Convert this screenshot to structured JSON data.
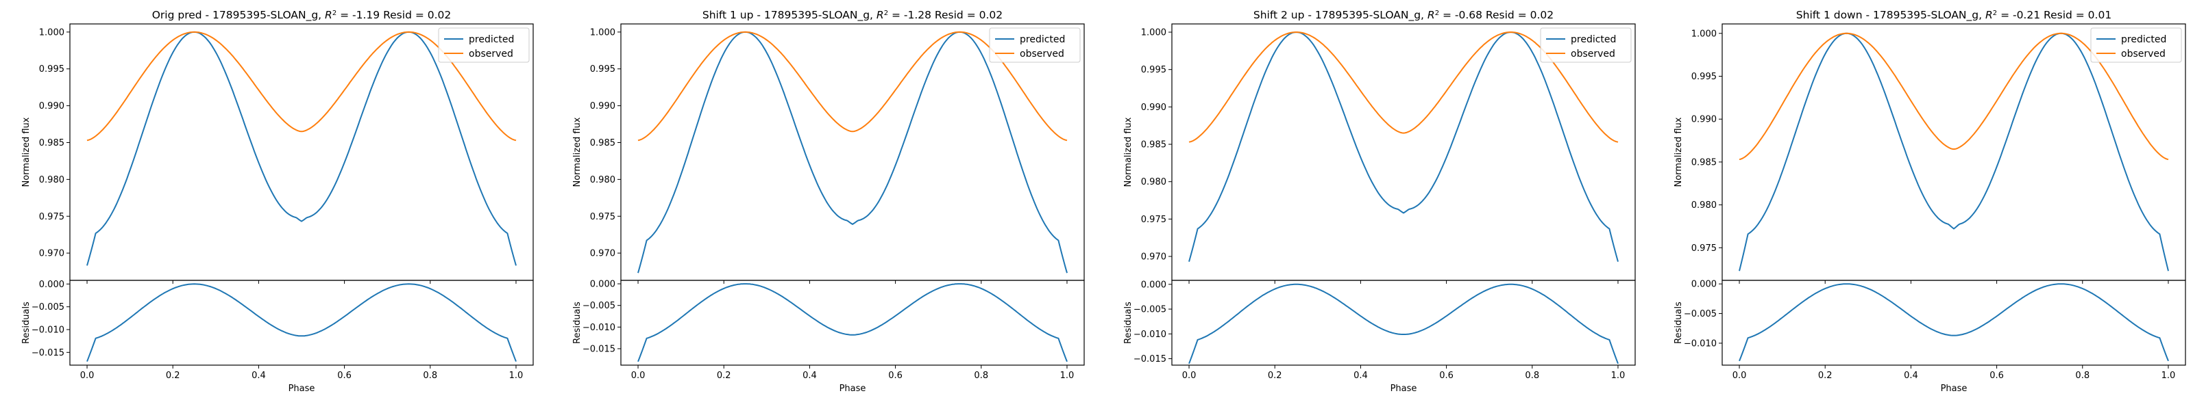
{
  "chart_data": [
    {
      "type": "line",
      "title": {
        "main": "Orig pred - 17895395-SLOAN_g, ",
        "r2_label": "R",
        "r2_exp": "2",
        "stats": " = -1.19 Resid = 0.02"
      },
      "xlabel": "Phase",
      "ylabel_top": "Normalized flux",
      "ylabel_bottom": "Residuals",
      "xlim": [
        -0.04,
        1.04
      ],
      "top_ylim": [
        0.9663,
        1.0011
      ],
      "bottom_ylim": [
        -0.0178,
        0.0008
      ],
      "xticks": [
        0.0,
        0.2,
        0.4,
        0.6,
        0.8,
        1.0
      ],
      "xtick_labels": [
        "0.0",
        "0.2",
        "0.4",
        "0.6",
        "0.8",
        "1.0"
      ],
      "top_yticks": [
        0.97,
        0.975,
        0.98,
        0.985,
        0.99,
        0.995,
        1.0
      ],
      "top_ytick_labels": [
        "0.970",
        "0.975",
        "0.980",
        "0.985",
        "0.990",
        "0.995",
        "1.000"
      ],
      "bottom_yticks": [
        -0.015,
        -0.01,
        -0.005,
        0.0
      ],
      "bottom_ytick_labels": [
        "−0.015",
        "−0.010",
        "−0.005",
        "0.000"
      ],
      "legend": [
        "predicted",
        "observed"
      ],
      "legend_position": "upper right",
      "series": [
        {
          "name": "predicted",
          "color": "#1f77b4",
          "min": 0.9683,
          "mid_dip": 0.9748
        },
        {
          "name": "observed",
          "color": "#ff7f0e",
          "min": 0.9853,
          "mid_dip": 0.9865
        }
      ],
      "residual": {
        "color": "#1f77b4",
        "min": -0.017,
        "mid_dip": -0.0114
      }
    },
    {
      "type": "line",
      "title": {
        "main": "Shift 1 up - 17895395-SLOAN_g, ",
        "r2_label": "R",
        "r2_exp": "2",
        "stats": " = -1.28 Resid = 0.02"
      },
      "xlabel": "Phase",
      "ylabel_top": "Normalized flux",
      "ylabel_bottom": "Residuals",
      "xlim": [
        -0.04,
        1.04
      ],
      "top_ylim": [
        0.9663,
        1.0011
      ],
      "bottom_ylim": [
        -0.0188,
        0.0008
      ],
      "xticks": [
        0.0,
        0.2,
        0.4,
        0.6,
        0.8,
        1.0
      ],
      "xtick_labels": [
        "0.0",
        "0.2",
        "0.4",
        "0.6",
        "0.8",
        "1.0"
      ],
      "top_yticks": [
        0.97,
        0.975,
        0.98,
        0.985,
        0.99,
        0.995,
        1.0
      ],
      "top_ytick_labels": [
        "0.970",
        "0.975",
        "0.980",
        "0.985",
        "0.990",
        "0.995",
        "1.000"
      ],
      "bottom_yticks": [
        -0.015,
        -0.01,
        -0.005,
        0.0
      ],
      "bottom_ytick_labels": [
        "−0.015",
        "−0.010",
        "−0.005",
        "0.000"
      ],
      "legend": [
        "predicted",
        "observed"
      ],
      "legend_position": "upper right",
      "series": [
        {
          "name": "predicted",
          "color": "#1f77b4",
          "min": 0.9673,
          "mid_dip": 0.9744
        },
        {
          "name": "observed",
          "color": "#ff7f0e",
          "min": 0.9853,
          "mid_dip": 0.9865
        }
      ],
      "residual": {
        "color": "#1f77b4",
        "min": -0.018,
        "mid_dip": -0.0118
      }
    },
    {
      "type": "line",
      "title": {
        "main": "Shift 2 up - 17895395-SLOAN_g, ",
        "r2_label": "R",
        "r2_exp": "2",
        "stats": " = -0.68 Resid = 0.02"
      },
      "xlabel": "Phase",
      "ylabel_top": "Normalized flux",
      "ylabel_bottom": "Residuals",
      "xlim": [
        -0.04,
        1.04
      ],
      "top_ylim": [
        0.9668,
        1.0011
      ],
      "bottom_ylim": [
        -0.0163,
        0.0008
      ],
      "xticks": [
        0.0,
        0.2,
        0.4,
        0.6,
        0.8,
        1.0
      ],
      "xtick_labels": [
        "0.0",
        "0.2",
        "0.4",
        "0.6",
        "0.8",
        "1.0"
      ],
      "top_yticks": [
        0.97,
        0.975,
        0.98,
        0.985,
        0.99,
        0.995,
        1.0
      ],
      "top_ytick_labels": [
        "0.970",
        "0.975",
        "0.980",
        "0.985",
        "0.990",
        "0.995",
        "1.000"
      ],
      "bottom_yticks": [
        -0.015,
        -0.01,
        -0.005,
        0.0
      ],
      "bottom_ytick_labels": [
        "−0.015",
        "−0.010",
        "−0.005",
        "0.000"
      ],
      "legend": [
        "predicted",
        "observed"
      ],
      "legend_position": "upper right",
      "series": [
        {
          "name": "predicted",
          "color": "#1f77b4",
          "min": 0.9693,
          "mid_dip": 0.9763
        },
        {
          "name": "observed",
          "color": "#ff7f0e",
          "min": 0.9853,
          "mid_dip": 0.9865
        }
      ],
      "residual": {
        "color": "#1f77b4",
        "min": -0.016,
        "mid_dip": -0.0101
      }
    },
    {
      "type": "line",
      "title": {
        "main": "Shift 1 down - 17895395-SLOAN_g, ",
        "r2_label": "R",
        "r2_exp": "2",
        "stats": " = -0.21 Resid = 0.01"
      },
      "xlabel": "Phase",
      "ylabel_top": "Normalized flux",
      "ylabel_bottom": "Residuals",
      "xlim": [
        -0.04,
        1.04
      ],
      "top_ylim": [
        0.9712,
        1.0011
      ],
      "bottom_ylim": [
        -0.0137,
        0.0006
      ],
      "xticks": [
        0.0,
        0.2,
        0.4,
        0.6,
        0.8,
        1.0
      ],
      "xtick_labels": [
        "0.0",
        "0.2",
        "0.4",
        "0.6",
        "0.8",
        "1.0"
      ],
      "top_yticks": [
        0.975,
        0.98,
        0.985,
        0.99,
        0.995,
        1.0
      ],
      "top_ytick_labels": [
        "0.975",
        "0.980",
        "0.985",
        "0.990",
        "0.995",
        "1.000"
      ],
      "bottom_yticks": [
        -0.01,
        -0.005,
        0.0
      ],
      "bottom_ytick_labels": [
        "−0.010",
        "−0.005",
        "0.000"
      ],
      "legend": [
        "predicted",
        "observed"
      ],
      "legend_position": "upper right",
      "series": [
        {
          "name": "predicted",
          "color": "#1f77b4",
          "min": 0.9723,
          "mid_dip": 0.9777
        },
        {
          "name": "observed",
          "color": "#ff7f0e",
          "min": 0.9853,
          "mid_dip": 0.9865
        }
      ],
      "residual": {
        "color": "#1f77b4",
        "min": -0.013,
        "mid_dip": -0.0087
      }
    }
  ]
}
